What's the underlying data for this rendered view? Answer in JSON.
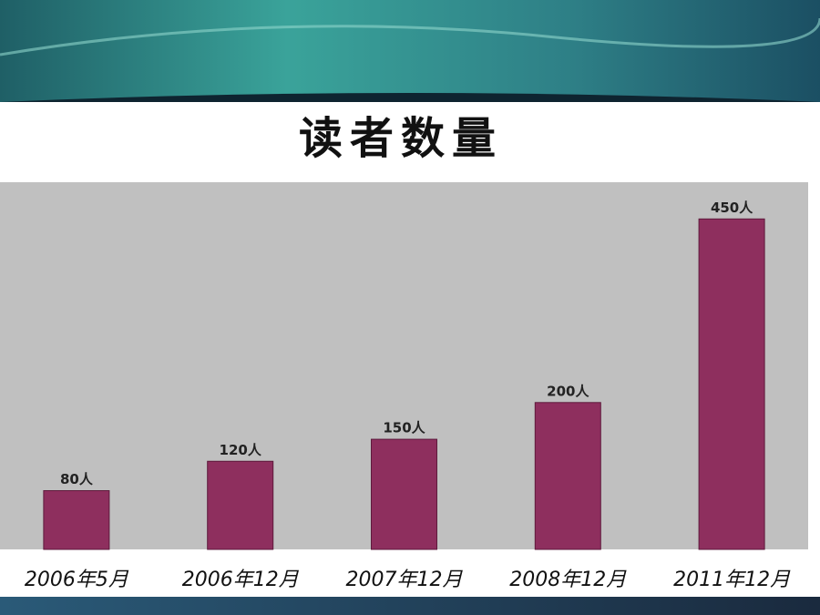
{
  "chart_data": {
    "type": "bar",
    "title": "读者数量",
    "categories": [
      "2006年5月",
      "2006年12月",
      "2007年12月",
      "2008年12月",
      "2011年12月"
    ],
    "values": [
      80,
      120,
      150,
      200,
      450
    ],
    "value_labels": [
      "80人",
      "120人",
      "150人",
      "200人",
      "450人"
    ],
    "color": "#8e2f5e",
    "ylim": [
      0,
      500
    ]
  }
}
